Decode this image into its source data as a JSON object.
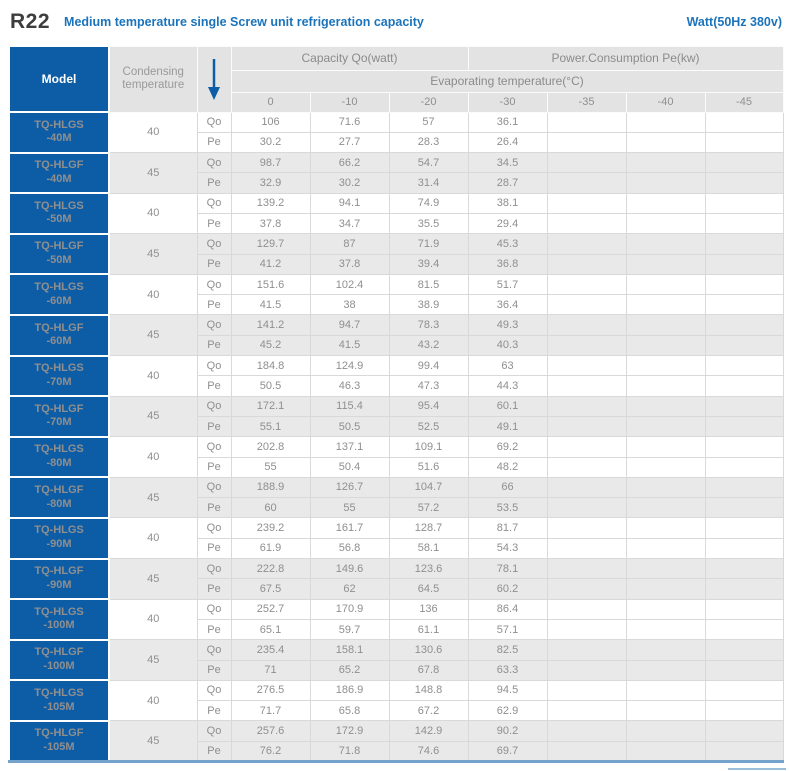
{
  "page": {
    "title": "R22",
    "subtitle": "Medium temperature single Screw unit refrigeration capacity",
    "unit_label": "Watt(50Hz 380v)"
  },
  "colors": {
    "brand_blue": "#0d5da6",
    "title_blue": "#1b74bb",
    "header_gray_bg": "#e3e3e3",
    "alt_row_bg": "#e9e9e9",
    "text_gray": "#8f8f8f",
    "bottom_border_blue": "#76a3cb"
  },
  "table": {
    "header": {
      "model": "Model",
      "condensing_line1": "Condensing",
      "condensing_line2": "temperature",
      "arrow_icon": "down-arrow",
      "capacity": "Capacity Qo(watt)",
      "power": "Power.Consumption Pe(kw)",
      "evaporating": "Evaporating temperature(°C)",
      "temps": [
        "0",
        "-10",
        "-20",
        "-30",
        "-35",
        "-40",
        "-45"
      ]
    },
    "row_labels": {
      "qo": "Qo",
      "pe": "Pe"
    },
    "rows": [
      {
        "model_line1": "TQ-HLGS",
        "model_line2": "-40M",
        "condensing": "40",
        "qo": [
          "106",
          "71.6",
          "57",
          "36.1",
          "",
          "",
          ""
        ],
        "pe": [
          "30.2",
          "27.7",
          "28.3",
          "26.4",
          "",
          "",
          ""
        ]
      },
      {
        "model_line1": "TQ-HLGF",
        "model_line2": "-40M",
        "condensing": "45",
        "qo": [
          "98.7",
          "66.2",
          "54.7",
          "34.5",
          "",
          "",
          ""
        ],
        "pe": [
          "32.9",
          "30.2",
          "31.4",
          "28.7",
          "",
          "",
          ""
        ]
      },
      {
        "model_line1": "TQ-HLGS",
        "model_line2": "-50M",
        "condensing": "40",
        "qo": [
          "139.2",
          "94.1",
          "74.9",
          "38.1",
          "",
          "",
          ""
        ],
        "pe": [
          "37.8",
          "34.7",
          "35.5",
          "29.4",
          "",
          "",
          ""
        ]
      },
      {
        "model_line1": "TQ-HLGF",
        "model_line2": "-50M",
        "condensing": "45",
        "qo": [
          "129.7",
          "87",
          "71.9",
          "45.3",
          "",
          "",
          ""
        ],
        "pe": [
          "41.2",
          "37.8",
          "39.4",
          "36.8",
          "",
          "",
          ""
        ]
      },
      {
        "model_line1": "TQ-HLGS",
        "model_line2": "-60M",
        "condensing": "40",
        "qo": [
          "151.6",
          "102.4",
          "81.5",
          "51.7",
          "",
          "",
          ""
        ],
        "pe": [
          "41.5",
          "38",
          "38.9",
          "36.4",
          "",
          "",
          ""
        ]
      },
      {
        "model_line1": "TQ-HLGF",
        "model_line2": "-60M",
        "condensing": "45",
        "qo": [
          "141.2",
          "94.7",
          "78.3",
          "49.3",
          "",
          "",
          ""
        ],
        "pe": [
          "45.2",
          "41.5",
          "43.2",
          "40.3",
          "",
          "",
          ""
        ]
      },
      {
        "model_line1": "TQ-HLGS",
        "model_line2": "-70M",
        "condensing": "40",
        "qo": [
          "184.8",
          "124.9",
          "99.4",
          "63",
          "",
          "",
          ""
        ],
        "pe": [
          "50.5",
          "46.3",
          "47.3",
          "44.3",
          "",
          "",
          ""
        ]
      },
      {
        "model_line1": "TQ-HLGF",
        "model_line2": "-70M",
        "condensing": "45",
        "qo": [
          "172.1",
          "115.4",
          "95.4",
          "60.1",
          "",
          "",
          ""
        ],
        "pe": [
          "55.1",
          "50.5",
          "52.5",
          "49.1",
          "",
          "",
          ""
        ]
      },
      {
        "model_line1": "TQ-HLGS",
        "model_line2": "-80M",
        "condensing": "40",
        "qo": [
          "202.8",
          "137.1",
          "109.1",
          "69.2",
          "",
          "",
          ""
        ],
        "pe": [
          "55",
          "50.4",
          "51.6",
          "48.2",
          "",
          "",
          ""
        ]
      },
      {
        "model_line1": "TQ-HLGF",
        "model_line2": "-80M",
        "condensing": "45",
        "qo": [
          "188.9",
          "126.7",
          "104.7",
          "66",
          "",
          "",
          ""
        ],
        "pe": [
          "60",
          "55",
          "57.2",
          "53.5",
          "",
          "",
          ""
        ]
      },
      {
        "model_line1": "TQ-HLGS",
        "model_line2": "-90M",
        "condensing": "40",
        "qo": [
          "239.2",
          "161.7",
          "128.7",
          "81.7",
          "",
          "",
          ""
        ],
        "pe": [
          "61.9",
          "56.8",
          "58.1",
          "54.3",
          "",
          "",
          ""
        ]
      },
      {
        "model_line1": "TQ-HLGF",
        "model_line2": "-90M",
        "condensing": "45",
        "qo": [
          "222.8",
          "149.6",
          "123.6",
          "78.1",
          "",
          "",
          ""
        ],
        "pe": [
          "67.5",
          "62",
          "64.5",
          "60.2",
          "",
          "",
          ""
        ]
      },
      {
        "model_line1": "TQ-HLGS",
        "model_line2": "-100M",
        "condensing": "40",
        "qo": [
          "252.7",
          "170.9",
          "136",
          "86.4",
          "",
          "",
          ""
        ],
        "pe": [
          "65.1",
          "59.7",
          "61.1",
          "57.1",
          "",
          "",
          ""
        ]
      },
      {
        "model_line1": "TQ-HLGF",
        "model_line2": "-100M",
        "condensing": "45",
        "qo": [
          "235.4",
          "158.1",
          "130.6",
          "82.5",
          "",
          "",
          ""
        ],
        "pe": [
          "71",
          "65.2",
          "67.8",
          "63.3",
          "",
          "",
          ""
        ]
      },
      {
        "model_line1": "TQ-HLGS",
        "model_line2": "-105M",
        "condensing": "40",
        "qo": [
          "276.5",
          "186.9",
          "148.8",
          "94.5",
          "",
          "",
          ""
        ],
        "pe": [
          "71.7",
          "65.8",
          "67.2",
          "62.9",
          "",
          "",
          ""
        ]
      },
      {
        "model_line1": "TQ-HLGF",
        "model_line2": "-105M",
        "condensing": "45",
        "qo": [
          "257.6",
          "172.9",
          "142.9",
          "90.2",
          "",
          "",
          ""
        ],
        "pe": [
          "76.2",
          "71.8",
          "74.6",
          "69.7",
          "",
          "",
          ""
        ]
      }
    ]
  }
}
